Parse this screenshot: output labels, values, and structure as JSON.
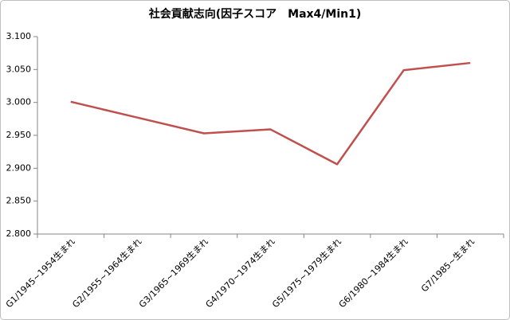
{
  "chart_data": {
    "type": "line",
    "title": "社会貢献志向(因子スコア　Max4/Min1)",
    "categories": [
      "G1/1945~1954生まれ",
      "G2/1955~1964生まれ",
      "G3/1965~1969生まれ",
      "G4/1970~1974生まれ",
      "G5/1975~1979生まれ",
      "G6/1980~1984生まれ",
      "G7/1985~生まれ"
    ],
    "values": [
      3.001,
      2.977,
      2.953,
      2.959,
      2.906,
      3.049,
      3.06
    ],
    "color": "#c0504d",
    "ylim": [
      2.8,
      3.1
    ],
    "yticks": [
      {
        "value": 2.8,
        "label": "2.800"
      },
      {
        "value": 2.85,
        "label": "2.850"
      },
      {
        "value": 2.9,
        "label": "2.900"
      },
      {
        "value": 2.95,
        "label": "2.950"
      },
      {
        "value": 3.0,
        "label": "3.000"
      },
      {
        "value": 3.05,
        "label": "3.050"
      },
      {
        "value": 3.1,
        "label": "3.100"
      }
    ],
    "grid": false
  }
}
